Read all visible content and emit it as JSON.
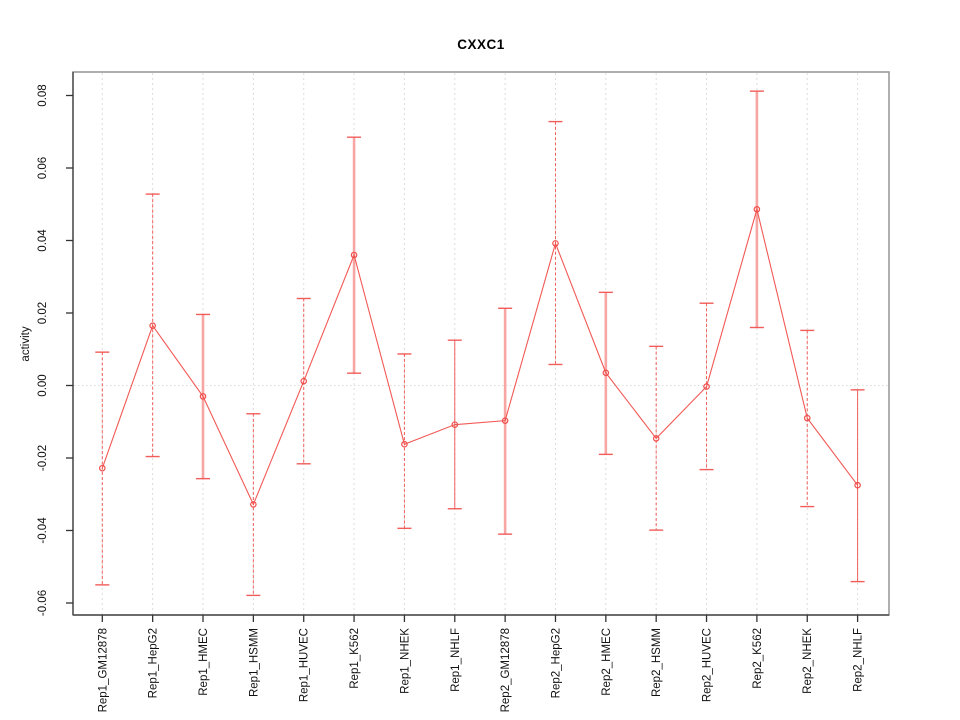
{
  "chart_data": {
    "type": "line",
    "title": "CXXC1",
    "xlabel": "",
    "ylabel": "activity",
    "categories": [
      "Rep1_GM12878",
      "Rep1_HepG2",
      "Rep1_HMEC",
      "Rep1_HSMM",
      "Rep1_HUVEC",
      "Rep1_K562",
      "Rep1_NHEK",
      "Rep1_NHLF",
      "Rep2_GM12878",
      "Rep2_HepG2",
      "Rep2_HMEC",
      "Rep2_HSMM",
      "Rep2_HUVEC",
      "Rep2_K562",
      "Rep2_NHEK",
      "Rep2_NHLF"
    ],
    "series": [
      {
        "name": "activity",
        "values": [
          -0.0228,
          0.0165,
          -0.003,
          -0.0328,
          0.0012,
          0.036,
          -0.0162,
          -0.0108,
          -0.0097,
          0.0392,
          0.0035,
          -0.0146,
          -0.0003,
          0.0486,
          -0.009,
          -0.0275
        ],
        "error_low": [
          -0.055,
          -0.0196,
          -0.0257,
          -0.0579,
          -0.0216,
          0.0034,
          -0.0394,
          -0.034,
          -0.041,
          0.0058,
          -0.019,
          -0.0399,
          -0.0232,
          0.016,
          -0.0334,
          -0.0541
        ],
        "error_high": [
          0.0092,
          0.0528,
          0.0196,
          -0.0078,
          0.024,
          0.0685,
          0.0087,
          0.0125,
          0.0213,
          0.0728,
          0.0257,
          0.0108,
          0.0227,
          0.0812,
          0.0152,
          -0.0012
        ]
      }
    ],
    "error_bar_line_styles": [
      "dashed",
      "dashed",
      "thick",
      "dashed",
      "dashed",
      "thick",
      "dashed",
      "solid",
      "thick",
      "dashed",
      "thick",
      "dashed",
      "dashed",
      "thick",
      "dashed",
      "solid"
    ],
    "point_style": "open-circle",
    "ylim": [
      -0.0633,
      0.0866
    ],
    "ytick_values": [
      -0.06,
      -0.04,
      -0.02,
      0,
      0.02,
      0.04,
      0.06,
      0.08
    ],
    "ytick_labels": [
      "-0.06",
      "-0.04",
      "-0.02",
      "0.00",
      "0.02",
      "0.04",
      "0.06",
      "0.08"
    ],
    "grid": {
      "vertical": "dashed light-gray line at every category",
      "horizontal": "dotted light-gray line at y=0 only"
    },
    "legend": "none",
    "colors": {
      "series_red": "#f0504c",
      "error_bar_thick_pink": "#f8a6a4",
      "grid_gray": "#dcdcdc",
      "box_gray": "#9b9b9b",
      "axis_dark": "#4f4f4f",
      "tick_dark": "#333333",
      "text_black": "#111111",
      "background": "#ffffff"
    }
  }
}
